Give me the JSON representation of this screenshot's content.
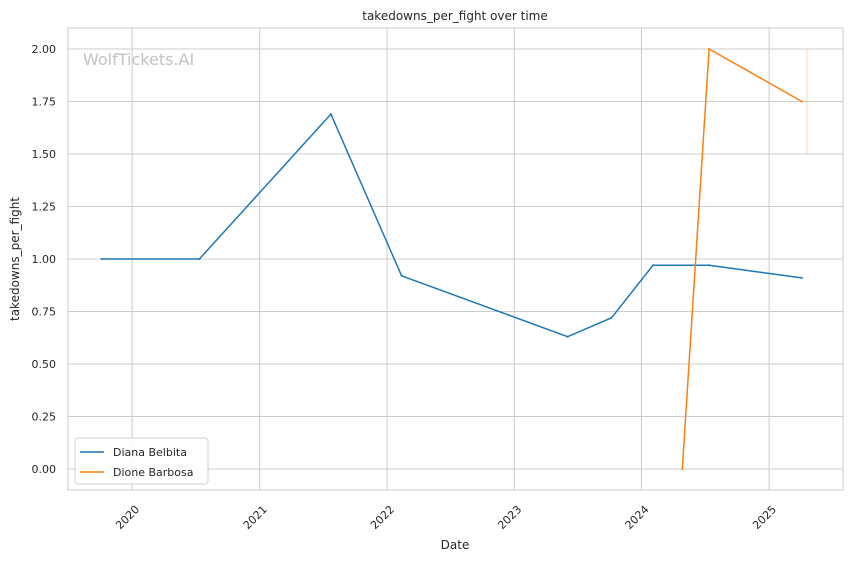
{
  "chart_data": {
    "type": "line",
    "title": "takedowns_per_fight over time",
    "xlabel": "Date",
    "ylabel": "takedowns_per_fight",
    "watermark": "WolfTickets.AI",
    "xlim": [
      "2019-07-01",
      "2025-08-01"
    ],
    "ylim": [
      -0.1,
      2.1
    ],
    "x_ticks": [
      "2020",
      "2021",
      "2022",
      "2023",
      "2024",
      "2025"
    ],
    "y_ticks": [
      "0.00",
      "0.25",
      "0.50",
      "0.75",
      "1.00",
      "1.25",
      "1.50",
      "1.75",
      "2.00"
    ],
    "grid": true,
    "legend_position": "lower-left",
    "series": [
      {
        "name": "Diana Belbita",
        "color": "#1f77b4",
        "points": [
          {
            "x": "2019-10-05",
            "y": 1.0
          },
          {
            "x": "2020-07-12",
            "y": 1.0
          },
          {
            "x": "2021-07-24",
            "y": 1.69
          },
          {
            "x": "2022-02-12",
            "y": 0.92
          },
          {
            "x": "2023-06-03",
            "y": 0.63
          },
          {
            "x": "2023-10-07",
            "y": 0.72
          },
          {
            "x": "2024-02-03",
            "y": 0.97
          },
          {
            "x": "2024-07-13",
            "y": 0.97
          },
          {
            "x": "2025-04-05",
            "y": 0.91
          }
        ]
      },
      {
        "name": "Dione Barbosa",
        "color": "#ff7f0e",
        "points": [
          {
            "x": "2024-04-27",
            "y": 0.0
          },
          {
            "x": "2024-07-13",
            "y": 2.0
          },
          {
            "x": "2025-04-05",
            "y": 1.75
          }
        ]
      }
    ]
  }
}
